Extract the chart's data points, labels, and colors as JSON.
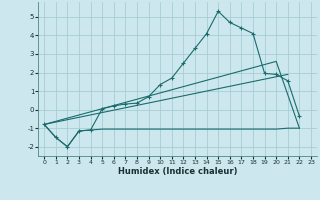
{
  "xlabel": "Humidex (Indice chaleur)",
  "ylabel": "",
  "background_color": "#cce8ee",
  "grid_color": "#a8cdd5",
  "line_color": "#1a6b6b",
  "xlim": [
    -0.5,
    23.5
  ],
  "ylim": [
    -2.5,
    5.8
  ],
  "x_ticks": [
    0,
    1,
    2,
    3,
    4,
    5,
    6,
    7,
    8,
    9,
    10,
    11,
    12,
    13,
    14,
    15,
    16,
    17,
    18,
    19,
    20,
    21,
    22,
    23
  ],
  "y_ticks": [
    -2,
    -1,
    0,
    1,
    2,
    3,
    4,
    5
  ],
  "curve1_x": [
    0,
    1,
    2,
    3,
    4,
    5,
    6,
    7,
    8,
    9,
    10,
    11,
    12,
    13,
    14,
    15,
    16,
    17,
    18,
    19,
    20,
    21,
    22
  ],
  "curve1_y": [
    -0.8,
    -1.5,
    -2.0,
    -1.15,
    -1.1,
    0.05,
    0.2,
    0.3,
    0.35,
    0.7,
    1.35,
    1.7,
    2.5,
    3.3,
    4.1,
    5.3,
    4.7,
    4.4,
    4.1,
    1.95,
    1.9,
    1.55,
    -0.35
  ],
  "curve2_x": [
    0,
    1,
    2,
    3,
    4,
    5,
    6,
    7,
    8,
    9,
    10,
    11,
    12,
    13,
    14,
    15,
    16,
    17,
    18,
    19,
    20,
    21,
    22
  ],
  "curve2_y": [
    -0.8,
    -1.5,
    -2.0,
    -1.15,
    -1.1,
    -1.05,
    -1.05,
    -1.05,
    -1.05,
    -1.05,
    -1.05,
    -1.05,
    -1.05,
    -1.05,
    -1.05,
    -1.05,
    -1.05,
    -1.05,
    -1.05,
    -1.05,
    -1.05,
    -1.0,
    -1.0
  ],
  "curve3_x": [
    0,
    20,
    22
  ],
  "curve3_y": [
    -0.8,
    2.6,
    -1.0
  ],
  "curve4_x": [
    0,
    21
  ],
  "curve4_y": [
    -0.8,
    1.9
  ]
}
